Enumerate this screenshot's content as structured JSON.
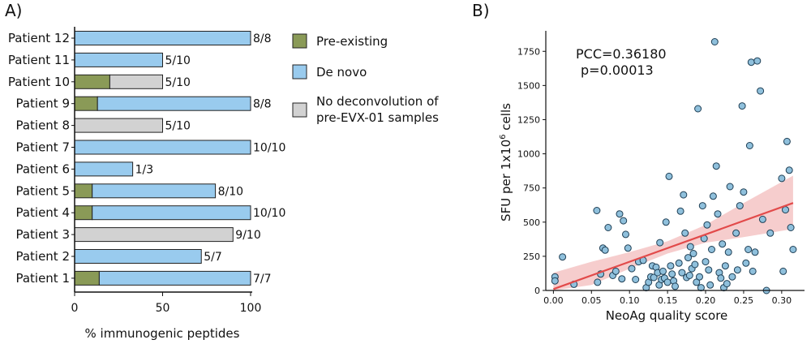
{
  "colors": {
    "pre_existing": "#8a9a57",
    "de_novo": "#99cbee",
    "no_deconv": "#d2d2d2",
    "scatter_point": "#8fc0dc",
    "fit_line": "#e24a4a",
    "ci_band": "#f2b8b8"
  },
  "chart_data": [
    {
      "panel": "A)",
      "type": "bar",
      "orientation": "horizontal",
      "stacked": true,
      "title": "",
      "xlabel": "% immunogenic peptides",
      "ylabel": "",
      "xlim": [
        0,
        100
      ],
      "xticks": [
        "0",
        "50",
        "100"
      ],
      "legend": [
        "Pre-existing",
        "De novo",
        "No deconvolution of",
        "pre-EVX-01 samples"
      ],
      "bars": [
        {
          "label": "Patient 12",
          "pre": 0,
          "denovo": 100,
          "nodeconv": 0,
          "annotation": "8/8"
        },
        {
          "label": "Patient 11",
          "pre": 0,
          "denovo": 50,
          "nodeconv": 0,
          "annotation": "5/10"
        },
        {
          "label": "Patient 10",
          "pre": 20,
          "denovo": 0,
          "nodeconv": 30,
          "annotation": "5/10"
        },
        {
          "label": "Patient 9",
          "pre": 13,
          "denovo": 87,
          "nodeconv": 0,
          "annotation": "8/8"
        },
        {
          "label": "Patient 8",
          "pre": 0,
          "denovo": 0,
          "nodeconv": 50,
          "annotation": "5/10"
        },
        {
          "label": "Patient 7",
          "pre": 0,
          "denovo": 100,
          "nodeconv": 0,
          "annotation": "10/10"
        },
        {
          "label": "Patient 6",
          "pre": 0,
          "denovo": 33,
          "nodeconv": 0,
          "annotation": "1/3"
        },
        {
          "label": "Patient 5",
          "pre": 10,
          "denovo": 70,
          "nodeconv": 0,
          "annotation": "8/10"
        },
        {
          "label": "Patient 4",
          "pre": 10,
          "denovo": 90,
          "nodeconv": 0,
          "annotation": "10/10"
        },
        {
          "label": "Patient 3",
          "pre": 0,
          "denovo": 0,
          "nodeconv": 90,
          "annotation": "9/10"
        },
        {
          "label": "Patient 2",
          "pre": 0,
          "denovo": 72,
          "nodeconv": 0,
          "annotation": "5/7"
        },
        {
          "label": "Patient 1",
          "pre": 14,
          "denovo": 86,
          "nodeconv": 0,
          "annotation": "7/7"
        }
      ]
    },
    {
      "panel": "B)",
      "type": "scatter",
      "title": "",
      "xlabel": "NeoAg quality score",
      "ylabel_main": "SFU per 1x10",
      "ylabel_sup": "6",
      "ylabel_rest": " cells",
      "xlim": [
        -0.01,
        0.33
      ],
      "ylim": [
        0,
        1900
      ],
      "xticks": [
        0.0,
        0.05,
        0.1,
        0.15,
        0.2,
        0.25,
        0.3
      ],
      "xtick_labels": [
        "0.00",
        "0.05",
        "0.10",
        "0.15",
        "0.20",
        "0.25",
        "0.30"
      ],
      "yticks": [
        0,
        250,
        500,
        750,
        1000,
        1250,
        1500,
        1750
      ],
      "ytick_labels": [
        "0",
        "250",
        "500",
        "750",
        "1000",
        "1250",
        "1500",
        "1750"
      ],
      "annotations": [
        "PCC=0.36180",
        "p=0.00013"
      ],
      "regression": {
        "x0": 0.0,
        "y0": 10,
        "x1": 0.315,
        "y1": 640
      },
      "ci_band": [
        {
          "x": 0.0,
          "lo": -110,
          "hi": 130
        },
        {
          "x": 0.05,
          "lo": 40,
          "hi": 210
        },
        {
          "x": 0.1,
          "lo": 160,
          "hi": 280
        },
        {
          "x": 0.15,
          "lo": 270,
          "hi": 360
        },
        {
          "x": 0.2,
          "lo": 350,
          "hi": 480
        },
        {
          "x": 0.25,
          "lo": 390,
          "hi": 640
        },
        {
          "x": 0.315,
          "lo": 450,
          "hi": 840
        }
      ],
      "points": [
        [
          0.002,
          100
        ],
        [
          0.002,
          70
        ],
        [
          0.012,
          245
        ],
        [
          0.027,
          45
        ],
        [
          0.057,
          585
        ],
        [
          0.058,
          60
        ],
        [
          0.062,
          120
        ],
        [
          0.065,
          310
        ],
        [
          0.068,
          295
        ],
        [
          0.072,
          460
        ],
        [
          0.078,
          110
        ],
        [
          0.082,
          140
        ],
        [
          0.087,
          560
        ],
        [
          0.09,
          85
        ],
        [
          0.092,
          510
        ],
        [
          0.095,
          410
        ],
        [
          0.098,
          310
        ],
        [
          0.103,
          160
        ],
        [
          0.108,
          80
        ],
        [
          0.112,
          210
        ],
        [
          0.118,
          220
        ],
        [
          0.122,
          20
        ],
        [
          0.125,
          60
        ],
        [
          0.128,
          100
        ],
        [
          0.13,
          180
        ],
        [
          0.132,
          95
        ],
        [
          0.135,
          170
        ],
        [
          0.137,
          130
        ],
        [
          0.139,
          40
        ],
        [
          0.14,
          350
        ],
        [
          0.142,
          80
        ],
        [
          0.144,
          140
        ],
        [
          0.146,
          90
        ],
        [
          0.148,
          500
        ],
        [
          0.15,
          60
        ],
        [
          0.152,
          835
        ],
        [
          0.154,
          180
        ],
        [
          0.156,
          120
        ],
        [
          0.158,
          70
        ],
        [
          0.16,
          30
        ],
        [
          0.165,
          200
        ],
        [
          0.167,
          580
        ],
        [
          0.169,
          130
        ],
        [
          0.171,
          700
        ],
        [
          0.173,
          420
        ],
        [
          0.175,
          95
        ],
        [
          0.177,
          240
        ],
        [
          0.179,
          110
        ],
        [
          0.18,
          320
        ],
        [
          0.182,
          160
        ],
        [
          0.184,
          270
        ],
        [
          0.186,
          190
        ],
        [
          0.188,
          60
        ],
        [
          0.19,
          1330
        ],
        [
          0.192,
          100
        ],
        [
          0.194,
          20
        ],
        [
          0.196,
          620
        ],
        [
          0.198,
          380
        ],
        [
          0.2,
          210
        ],
        [
          0.202,
          480
        ],
        [
          0.204,
          150
        ],
        [
          0.206,
          40
        ],
        [
          0.208,
          300
        ],
        [
          0.21,
          690
        ],
        [
          0.212,
          1820
        ],
        [
          0.214,
          910
        ],
        [
          0.216,
          560
        ],
        [
          0.218,
          130
        ],
        [
          0.22,
          90
        ],
        [
          0.222,
          340
        ],
        [
          0.224,
          20
        ],
        [
          0.226,
          180
        ],
        [
          0.228,
          50
        ],
        [
          0.23,
          280
        ],
        [
          0.232,
          760
        ],
        [
          0.235,
          100
        ],
        [
          0.24,
          420
        ],
        [
          0.242,
          150
        ],
        [
          0.245,
          620
        ],
        [
          0.248,
          1350
        ],
        [
          0.25,
          720
        ],
        [
          0.253,
          200
        ],
        [
          0.256,
          300
        ],
        [
          0.258,
          1060
        ],
        [
          0.26,
          1670
        ],
        [
          0.262,
          140
        ],
        [
          0.265,
          280
        ],
        [
          0.268,
          1680
        ],
        [
          0.272,
          1460
        ],
        [
          0.275,
          520
        ],
        [
          0.28,
          0
        ],
        [
          0.285,
          420
        ],
        [
          0.3,
          820
        ],
        [
          0.302,
          140
        ],
        [
          0.305,
          590
        ],
        [
          0.307,
          1090
        ],
        [
          0.31,
          880
        ],
        [
          0.312,
          460
        ],
        [
          0.315,
          300
        ]
      ]
    }
  ]
}
